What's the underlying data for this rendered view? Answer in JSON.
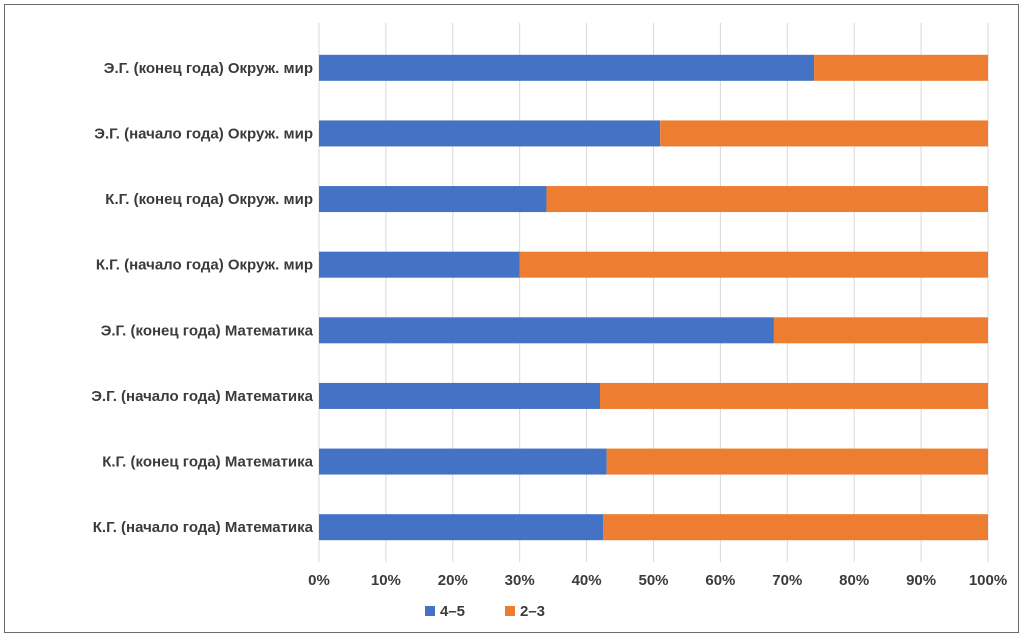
{
  "chart_data": {
    "type": "bar",
    "orientation": "horizontal",
    "stacked": "percent",
    "title": "",
    "xlabel": "",
    "ylabel": "",
    "categories": [
      "Э.Г. (конец года) Окруж. мир",
      "Э.Г. (начало года) Окруж. мир",
      "К.Г. (конец года) Окруж. мир",
      "К.Г. (начало года) Окруж. мир",
      "Э.Г. (конец года) Математика",
      "Э.Г. (начало года) Математика",
      "К.Г. (конец года) Математика",
      "К.Г. (начало года) Математика"
    ],
    "series": [
      {
        "name": "4–5",
        "color": "#4472c4",
        "values": [
          74,
          51,
          34,
          30,
          68,
          42,
          43,
          42.5
        ]
      },
      {
        "name": "2–3",
        "color": "#ed7d31",
        "values": [
          26,
          49,
          66,
          70,
          32,
          58,
          57,
          57.5
        ]
      }
    ],
    "xlim": [
      0,
      100
    ],
    "x_ticks": [
      "0%",
      "10%",
      "20%",
      "30%",
      "40%",
      "50%",
      "60%",
      "70%",
      "80%",
      "90%",
      "100%"
    ],
    "grid": "vertical",
    "legend_position": "bottom"
  }
}
